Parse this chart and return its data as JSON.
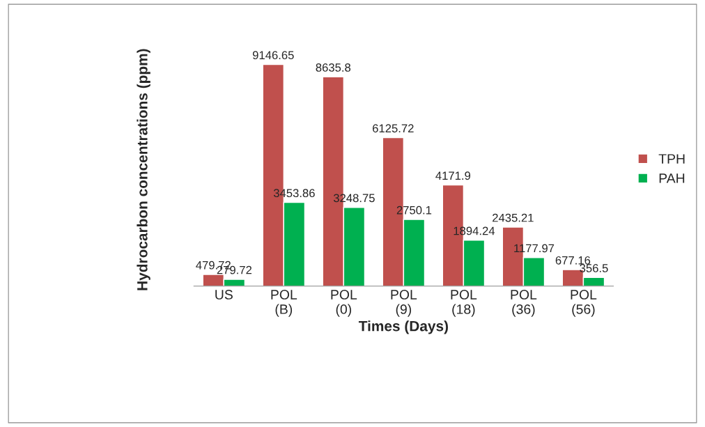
{
  "chart_data": {
    "type": "bar",
    "xlabel": "Times (Days)",
    "ylabel": "Hydrocarbon concentrations (ppm)",
    "categories": [
      "US",
      "POL\n(B)",
      "POL\n(0)",
      "POL\n(9)",
      "POL\n(18)",
      "POL\n(36)",
      "POL\n(56)"
    ],
    "series": [
      {
        "name": "TPH",
        "color": "#c0504d",
        "values": [
          479.72,
          9146.65,
          8635.8,
          6125.72,
          4171.9,
          2435.21,
          677.16
        ]
      },
      {
        "name": "PAH",
        "color": "#00b050",
        "values": [
          279.72,
          3453.86,
          3248.75,
          2750.1,
          1894.24,
          1177.97,
          356.5
        ]
      }
    ],
    "data_labels": true,
    "legend": "right",
    "grid": false
  }
}
